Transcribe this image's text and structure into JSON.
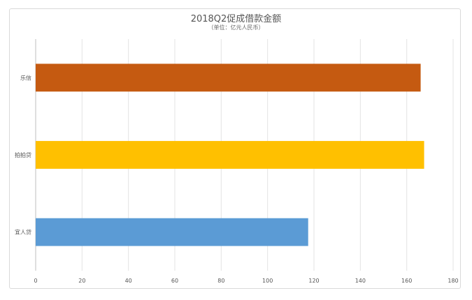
{
  "chart_data": {
    "type": "bar",
    "orientation": "horizontal",
    "title": "2018Q2促成借款金额",
    "subtitle": "（单位：亿元人民币）",
    "categories": [
      "宜人贷",
      "拍拍贷",
      "乐信"
    ],
    "values": [
      117.5,
      167.5,
      166
    ],
    "colors": [
      "#5b9bd5",
      "#ffc000",
      "#c55a11"
    ],
    "xlim": [
      0,
      180
    ],
    "xticks": [
      "0",
      "20",
      "40",
      "60",
      "80",
      "100",
      "120",
      "140",
      "160",
      "180"
    ],
    "grid": true,
    "legend": "none"
  }
}
